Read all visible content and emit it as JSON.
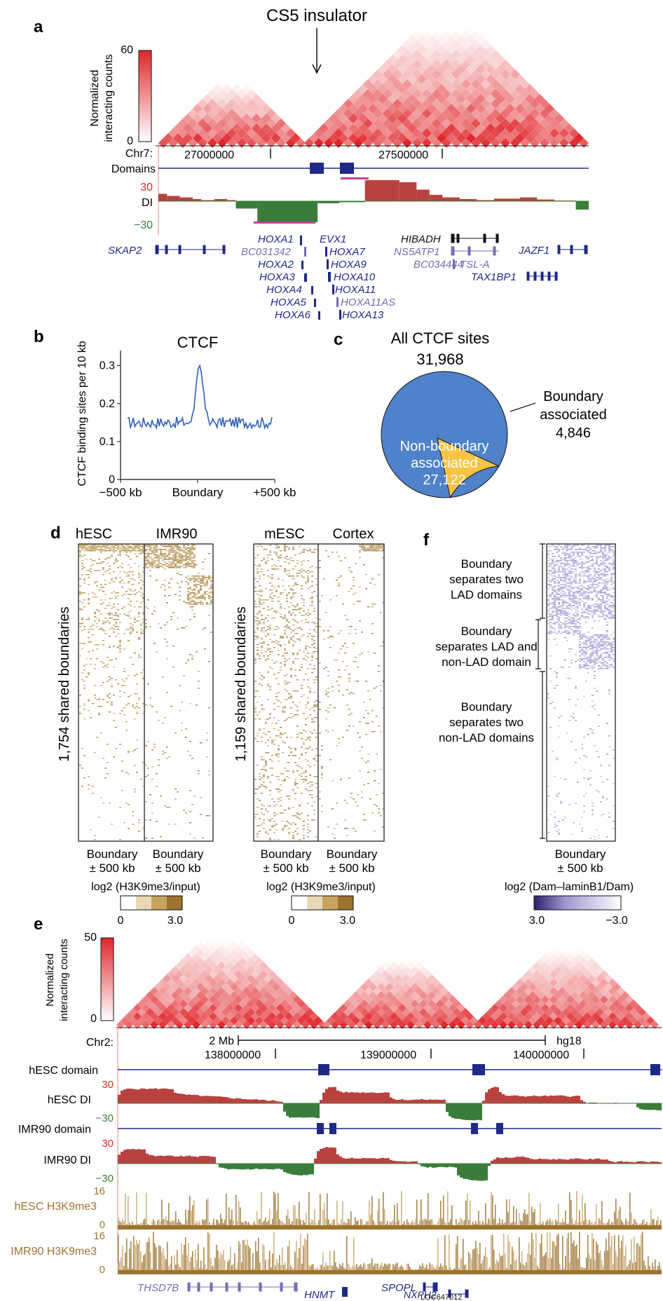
{
  "colors": {
    "red": "#e0262a",
    "navy": "#1f2a86",
    "green": "#3a7d3a",
    "brown": "#9c7330",
    "purple": "#7a6ab0",
    "lav": "#8d83c8",
    "blue": "#4f82c8",
    "yellow": "#f6c444",
    "magenta": "#c23fa0"
  },
  "panel_a": {
    "letter": "a",
    "title": "CS5 insulator",
    "colorbar": {
      "label_line1": "Normalized",
      "label_line2": "interacting counts",
      "max": "60",
      "min": "0"
    },
    "chr_label": "Chr7:",
    "coord1": "27000000",
    "coord2": "27500000",
    "domains_label": "Domains",
    "di_label": "DI",
    "di_max": "30",
    "di_min": "−30",
    "genes_dark": [
      "SKAP2",
      "HOXA1",
      "HOXA2",
      "HOXA3",
      "HOXA4",
      "HOXA5",
      "HOXA6",
      "EVX1",
      "HOXA7",
      "HOXA9",
      "HOXA10",
      "HOXA11",
      "HOXA13",
      "HIBADH",
      "JAZF1",
      "TAX1BP1"
    ],
    "genes_light": [
      "BC031342",
      "HOXA11AS",
      "NS5ATP1",
      "BC034444",
      "TSL-A"
    ]
  },
  "panel_b": {
    "letter": "b",
    "title": "CTCF",
    "ylabel": "CTCF binding sites per 10 kb",
    "yticks": [
      "0",
      "0.1",
      "0.2",
      "0.3"
    ],
    "xticks": [
      "−500 kb",
      "Boundary",
      "+500 kb"
    ]
  },
  "panel_c": {
    "letter": "c",
    "title": "All CTCF sites",
    "total": "31,968",
    "big_label1": "Non-boundary",
    "big_label2": "associated",
    "big_value": "27,122",
    "small_label1": "Boundary",
    "small_label2": "associated",
    "small_value": "4,846"
  },
  "panel_d": {
    "letter": "d",
    "left_cols": [
      "hESC",
      "IMR90"
    ],
    "right_cols": [
      "mESC",
      "Cortex"
    ],
    "left_ylabel": "1,754 shared boundaries",
    "right_ylabel": "1,159 shared boundaries",
    "xlab1": "Boundary",
    "xlab2": "± 500 kb",
    "scale_label": "log2 (H3K9me3/input)",
    "scale_min": "0",
    "scale_max": "3.0"
  },
  "panel_f": {
    "letter": "f",
    "groups": [
      [
        "Boundary",
        "separates two",
        "LAD domains"
      ],
      [
        "Boundary",
        "separates LAD and",
        "non-LAD domain"
      ],
      [
        "Boundary",
        "separates two",
        "non-LAD domains"
      ]
    ],
    "xlab1": "Boundary",
    "xlab2": "± 500 kb",
    "scale_label": "log2 (Dam–laminB1/Dam)",
    "scale_left": "3.0",
    "scale_right": "−3.0"
  },
  "panel_e": {
    "letter": "e",
    "colorbar": {
      "label_line1": "Normalized",
      "label_line2": "interacting counts",
      "max": "50",
      "min": "0"
    },
    "chr_label": "Chr2:",
    "scalebar": "2 Mb",
    "genome": "hg18",
    "coords": [
      "138000000",
      "139000000",
      "140000000"
    ],
    "tracks": [
      "hESC domain",
      "hESC DI",
      "IMR90 domain",
      "IMR90 DI",
      "hESC H3K9me3",
      "IMR90 H3K9me3"
    ],
    "di_max": "30",
    "di_min": "−30",
    "k9_max": "16",
    "k9_min": "0",
    "genes": [
      "THSD7B",
      "HNMT",
      "SPOPL",
      "NXPH2",
      "LOC647012"
    ]
  }
}
